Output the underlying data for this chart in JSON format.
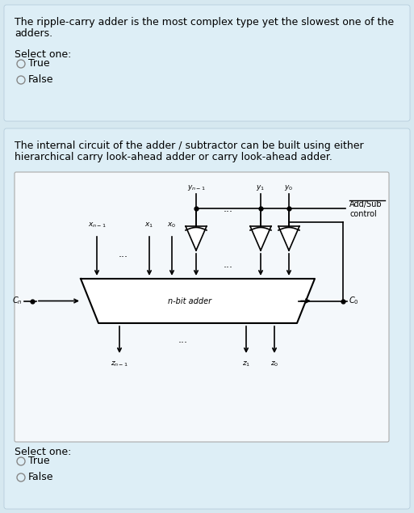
{
  "bg_color": "#d6e8f0",
  "white": "#ffffff",
  "black": "#000000",
  "panel1_text_line1": "The ripple-carry adder is the most complex type yet the slowest one of the",
  "panel1_text_line2": "adders.",
  "panel1_select": "Select one:",
  "panel1_true": "True",
  "panel1_false": "False",
  "panel2_text_line1": "The internal circuit of the adder / subtractor can be built using either",
  "panel2_text_line2": "hierarchical carry look-ahead adder or carry look-ahead adder.",
  "panel2_select": "Select one:",
  "panel2_true": "True",
  "panel2_false": "False",
  "font_size_main": 9.0,
  "font_size_small": 7.0,
  "font_size_label": 6.5
}
